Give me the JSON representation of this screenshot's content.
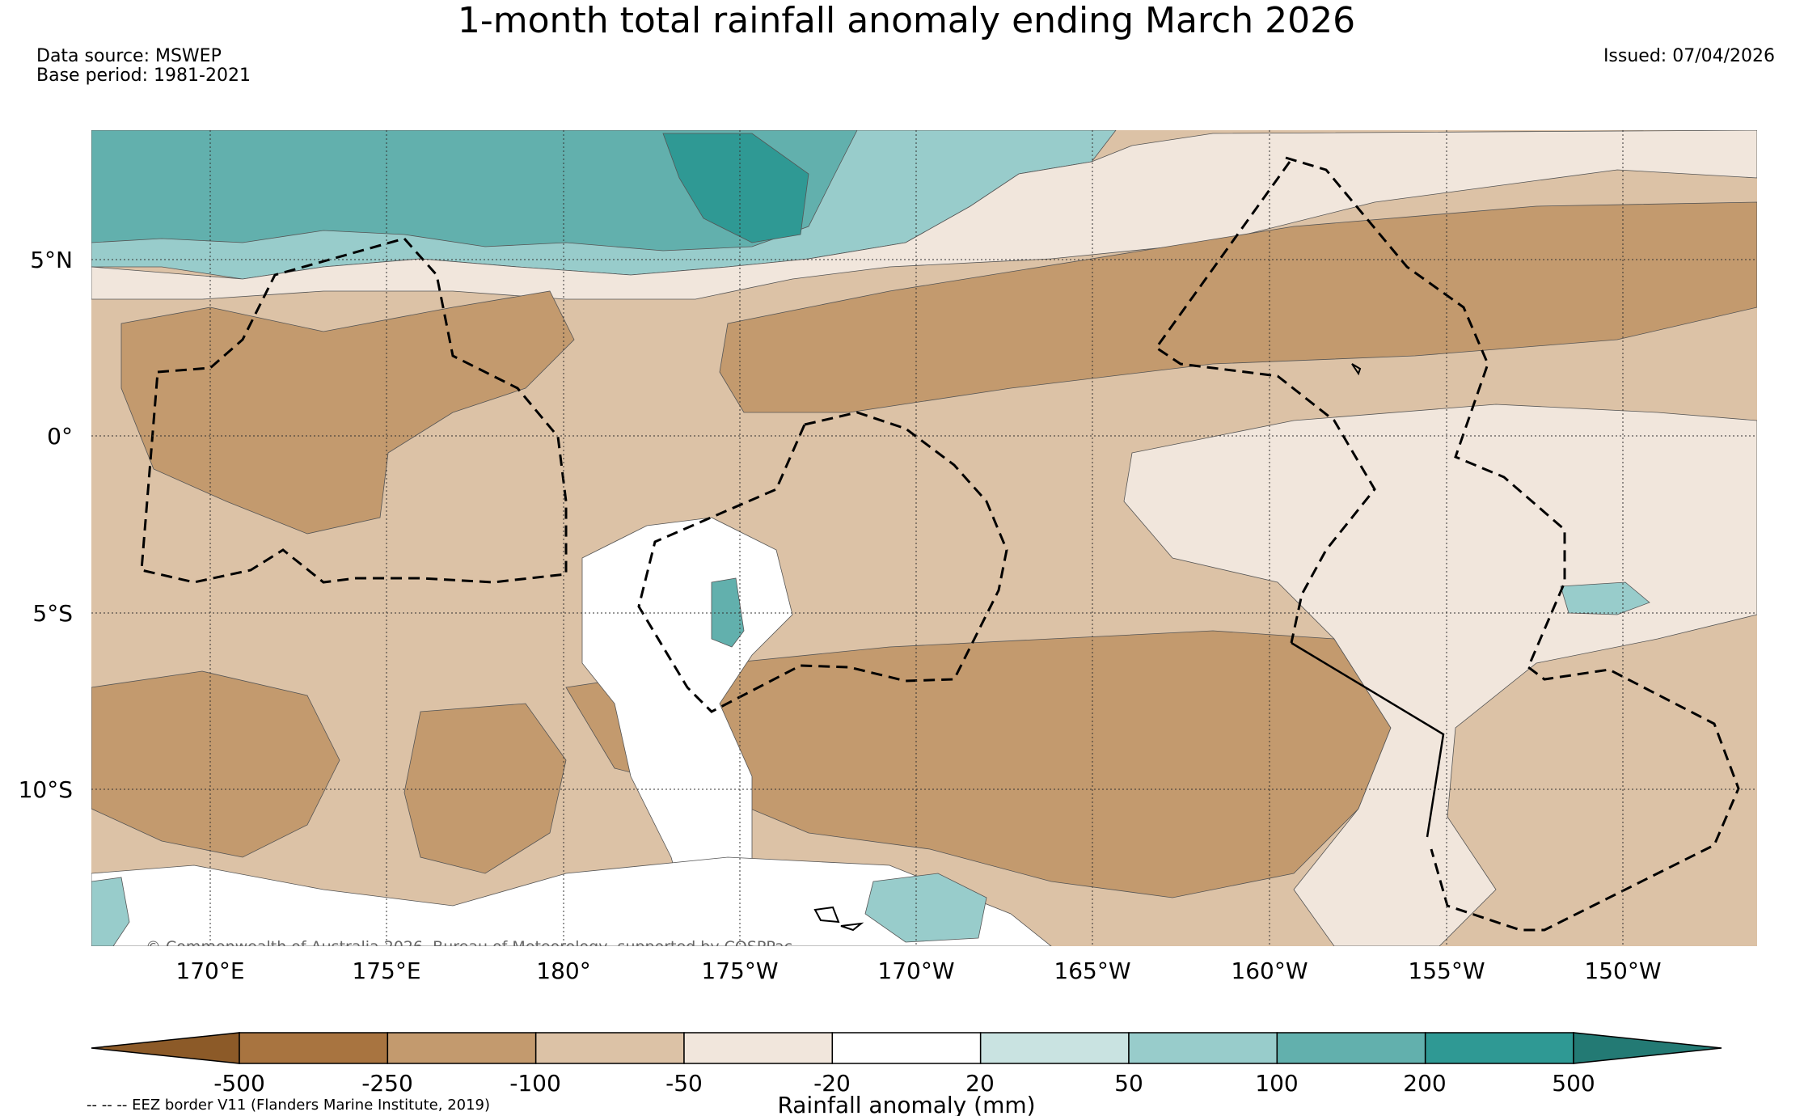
{
  "title": "1-month total rainfall anomaly ending March 2026",
  "info": {
    "source": "Data source: MSWEP",
    "base_period": "Base period: 1981-2021",
    "issued": "Issued: 07/04/2026"
  },
  "map": {
    "lon_labels": [
      "170°E",
      "175°E",
      "180°",
      "175°W",
      "170°W",
      "165°W",
      "160°W",
      "155°W",
      "150°W"
    ],
    "lat_labels": [
      "5°N",
      "0°",
      "5°S",
      "10°S"
    ],
    "copyright": "© Commonwealth of Australia 2026, Bureau of Meteorology, supported by COSPPac",
    "icons": {
      "eez": "dashed-eez-border-icon",
      "coast": "island-coastline-icon"
    }
  },
  "colorbar": {
    "tick_labels": [
      "-500",
      "-250",
      "-100",
      "-50",
      "-20",
      "20",
      "50",
      "100",
      "200",
      "500"
    ],
    "axis_label": "Rainfall anomaly (mm)",
    "colors": [
      "#8c5a28",
      "#a87440",
      "#c39a6e",
      "#dcc2a6",
      "#f1e6dc",
      "#ffffff",
      "#c9e3e1",
      "#98cccb",
      "#62b0ad",
      "#2f9994",
      "#237a74"
    ]
  },
  "footnote": "-- -- -- EEZ border V11 (Flanders Marine Institute, 2019)"
}
